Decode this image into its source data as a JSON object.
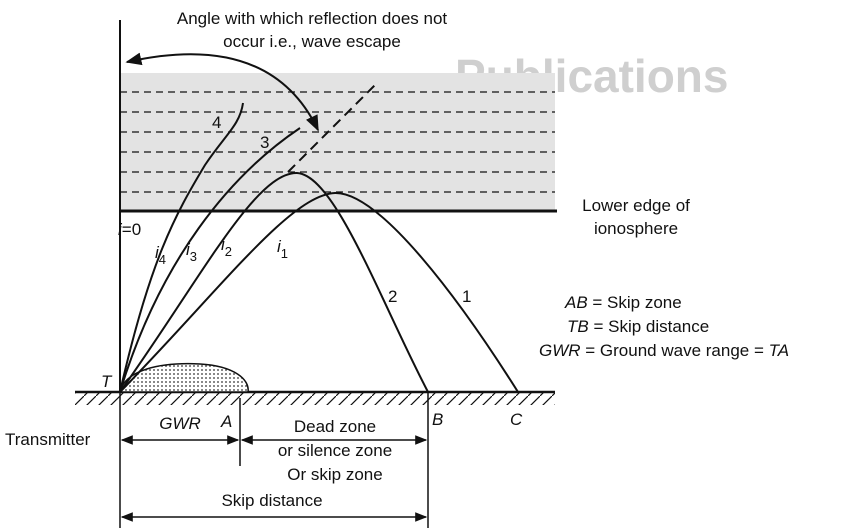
{
  "watermark": "Publications",
  "caption": [
    "Angle with which reflection does not",
    "occur i.e., wave escape"
  ],
  "ray_numbers": [
    "4",
    "3",
    "2",
    "1"
  ],
  "angle_labels": [
    {
      "symbol": "i",
      "suffix": "=0"
    },
    {
      "symbol": "i",
      "subscript": "4"
    },
    {
      "symbol": "i",
      "subscript": "3"
    },
    {
      "symbol": "i",
      "subscript": "2"
    },
    {
      "symbol": "i",
      "subscript": "1"
    }
  ],
  "ionosphere_label": [
    "Lower edge of",
    "ionosphere"
  ],
  "definitions": [
    {
      "term": "AB",
      "definition": " = Skip zone"
    },
    {
      "term": "TB",
      "definition": " = Skip distance"
    },
    {
      "term": "GWR",
      "definition": " = Ground wave range = ",
      "term2": "TA"
    }
  ],
  "points": [
    "T",
    "A",
    "B",
    "C"
  ],
  "transmitter": "Transmitter",
  "gwr": "GWR",
  "dead_zone": [
    "Dead zone",
    "or silence zone",
    "Or skip zone"
  ],
  "skip_distance": "Skip distance"
}
